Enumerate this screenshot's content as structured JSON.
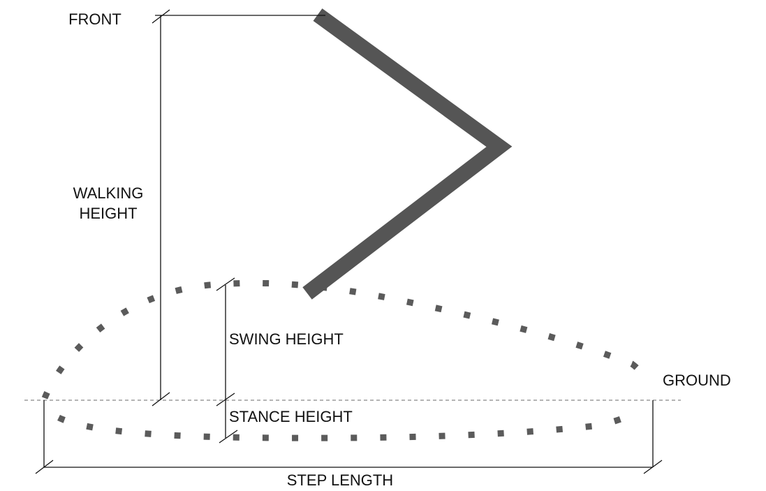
{
  "labels": {
    "front": "FRONT",
    "walking_height_line1": "WALKING",
    "walking_height_line2": "HEIGHT",
    "swing_height": "SWING HEIGHT",
    "ground": "GROUND",
    "stance_height": "STANCE HEIGHT",
    "step_length": "STEP LENGTH"
  },
  "colors": {
    "leg": "#555555",
    "trajectory": "#5b5b5b",
    "ground_line": "#888888",
    "dimension_lines": "#111111"
  }
}
